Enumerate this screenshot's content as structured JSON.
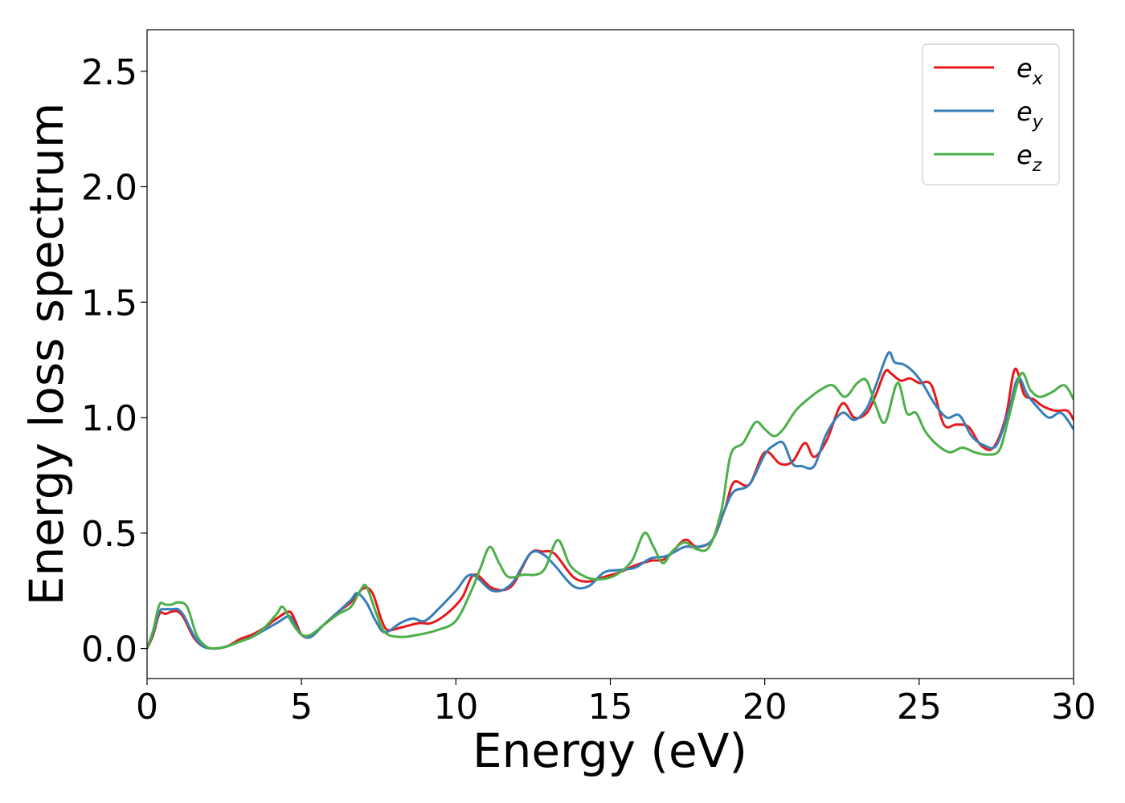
{
  "chart_data": {
    "type": "line",
    "title": "",
    "xlabel": "Energy (eV)",
    "ylabel": "Energy loss spectrum",
    "xlim": [
      0,
      30
    ],
    "ylim": [
      -0.13,
      2.68
    ],
    "xticks": [
      0,
      5,
      10,
      15,
      20,
      25,
      30
    ],
    "xtick_labels": [
      "0",
      "5",
      "10",
      "15",
      "20",
      "25",
      "30"
    ],
    "yticks": [
      0.0,
      0.5,
      1.0,
      1.5,
      2.0,
      2.5
    ],
    "ytick_labels": [
      "0.0",
      "0.5",
      "1.0",
      "1.5",
      "2.0",
      "2.5"
    ],
    "grid": false,
    "legend_position": "top-right",
    "series": [
      {
        "name": "e_x",
        "legend_base": "e",
        "legend_sub": "x",
        "color": "#e41a1c",
        "x": [
          0,
          0.2,
          0.4,
          0.6,
          0.8,
          1.0,
          1.2,
          1.5,
          1.8,
          2.2,
          2.6,
          3.0,
          3.4,
          3.8,
          4.2,
          4.6,
          4.8,
          5.0,
          5.3,
          5.7,
          6.2,
          6.6,
          7.0,
          7.3,
          7.6,
          7.8,
          8.2,
          8.8,
          9.2,
          9.7,
          10.2,
          10.6,
          11.2,
          11.8,
          12.4,
          12.8,
          13.2,
          13.8,
          14.3,
          14.8,
          15.3,
          15.8,
          16.3,
          16.8,
          17.4,
          17.8,
          18.3,
          18.7,
          19.0,
          19.5,
          20.0,
          20.5,
          20.9,
          21.3,
          21.6,
          22.0,
          22.5,
          22.9,
          23.3,
          23.6,
          23.9,
          24.1,
          24.4,
          24.7,
          25.0,
          25.4,
          25.8,
          26.2,
          26.6,
          27.0,
          27.4,
          27.8,
          28.1,
          28.4,
          28.7,
          29.0,
          29.4,
          29.8,
          30.0
        ],
        "y": [
          0.0,
          0.06,
          0.15,
          0.15,
          0.16,
          0.16,
          0.13,
          0.05,
          0.01,
          0.0,
          0.01,
          0.04,
          0.06,
          0.09,
          0.13,
          0.16,
          0.12,
          0.06,
          0.05,
          0.1,
          0.16,
          0.2,
          0.26,
          0.24,
          0.12,
          0.08,
          0.09,
          0.11,
          0.11,
          0.15,
          0.22,
          0.32,
          0.26,
          0.27,
          0.41,
          0.42,
          0.41,
          0.31,
          0.29,
          0.31,
          0.33,
          0.36,
          0.38,
          0.39,
          0.47,
          0.44,
          0.47,
          0.6,
          0.72,
          0.71,
          0.85,
          0.8,
          0.81,
          0.89,
          0.83,
          0.9,
          1.06,
          1.0,
          1.02,
          1.1,
          1.2,
          1.19,
          1.16,
          1.17,
          1.15,
          1.14,
          0.97,
          0.97,
          0.96,
          0.88,
          0.87,
          1.0,
          1.21,
          1.1,
          1.08,
          1.05,
          1.03,
          1.03,
          0.99
        ]
      },
      {
        "name": "e_y",
        "legend_base": "e",
        "legend_sub": "y",
        "color": "#377eb8",
        "x": [
          0,
          0.2,
          0.4,
          0.6,
          0.8,
          1.0,
          1.2,
          1.5,
          1.8,
          2.2,
          2.6,
          3.0,
          3.4,
          3.8,
          4.2,
          4.6,
          4.8,
          5.0,
          5.3,
          5.7,
          6.2,
          6.6,
          6.8,
          7.1,
          7.4,
          7.7,
          8.2,
          8.6,
          9.0,
          9.5,
          10.0,
          10.5,
          11.2,
          11.8,
          12.4,
          12.8,
          13.2,
          13.8,
          14.3,
          14.8,
          15.3,
          15.8,
          16.3,
          16.8,
          17.4,
          17.8,
          18.3,
          18.7,
          19.0,
          19.5,
          20.0,
          20.3,
          20.6,
          20.9,
          21.2,
          21.6,
          22.0,
          22.5,
          22.9,
          23.3,
          23.6,
          24.0,
          24.2,
          24.5,
          24.8,
          25.1,
          25.5,
          25.9,
          26.3,
          26.7,
          27.1,
          27.5,
          27.9,
          28.2,
          28.5,
          28.8,
          29.2,
          29.6,
          30.0
        ],
        "y": [
          0.0,
          0.07,
          0.16,
          0.17,
          0.17,
          0.17,
          0.14,
          0.06,
          0.01,
          0.0,
          0.01,
          0.03,
          0.05,
          0.08,
          0.11,
          0.14,
          0.1,
          0.06,
          0.05,
          0.1,
          0.16,
          0.21,
          0.24,
          0.2,
          0.12,
          0.07,
          0.11,
          0.13,
          0.12,
          0.18,
          0.25,
          0.32,
          0.25,
          0.28,
          0.41,
          0.41,
          0.36,
          0.27,
          0.27,
          0.33,
          0.34,
          0.35,
          0.39,
          0.4,
          0.44,
          0.44,
          0.47,
          0.6,
          0.68,
          0.71,
          0.84,
          0.88,
          0.89,
          0.8,
          0.79,
          0.79,
          0.93,
          1.02,
          0.99,
          1.04,
          1.14,
          1.28,
          1.24,
          1.23,
          1.2,
          1.15,
          1.06,
          1.0,
          1.01,
          0.92,
          0.88,
          0.88,
          1.03,
          1.17,
          1.1,
          1.05,
          1.0,
          1.02,
          0.95
        ]
      },
      {
        "name": "e_z",
        "legend_base": "e",
        "legend_sub": "z",
        "color": "#4daf4a",
        "x": [
          0,
          0.2,
          0.4,
          0.6,
          0.8,
          1.0,
          1.3,
          1.6,
          1.9,
          2.2,
          2.6,
          3.0,
          3.4,
          3.8,
          4.2,
          4.4,
          4.7,
          5.0,
          5.3,
          5.7,
          6.2,
          6.6,
          6.9,
          7.1,
          7.4,
          7.7,
          8.2,
          8.8,
          9.4,
          10.0,
          10.5,
          10.8,
          11.1,
          11.4,
          11.7,
          12.2,
          12.6,
          12.9,
          13.3,
          13.7,
          14.2,
          14.7,
          15.2,
          15.7,
          16.1,
          16.4,
          16.7,
          17.0,
          17.4,
          17.8,
          18.2,
          18.6,
          18.9,
          19.3,
          19.7,
          20.0,
          20.3,
          20.6,
          21.0,
          21.4,
          21.8,
          22.2,
          22.6,
          23.0,
          23.3,
          23.6,
          23.9,
          24.3,
          24.6,
          24.9,
          25.2,
          25.6,
          26.0,
          26.4,
          26.8,
          27.2,
          27.6,
          27.9,
          28.3,
          28.6,
          28.9,
          29.3,
          29.7,
          30.0
        ],
        "y": [
          0.0,
          0.08,
          0.19,
          0.19,
          0.19,
          0.2,
          0.18,
          0.06,
          0.01,
          0.0,
          0.01,
          0.03,
          0.05,
          0.09,
          0.15,
          0.18,
          0.11,
          0.06,
          0.06,
          0.1,
          0.15,
          0.18,
          0.25,
          0.27,
          0.16,
          0.07,
          0.05,
          0.06,
          0.08,
          0.12,
          0.25,
          0.35,
          0.44,
          0.37,
          0.31,
          0.32,
          0.32,
          0.35,
          0.47,
          0.36,
          0.31,
          0.3,
          0.32,
          0.38,
          0.5,
          0.44,
          0.37,
          0.42,
          0.46,
          0.43,
          0.44,
          0.6,
          0.84,
          0.89,
          0.98,
          0.95,
          0.92,
          0.95,
          1.03,
          1.08,
          1.12,
          1.14,
          1.09,
          1.15,
          1.16,
          1.05,
          0.98,
          1.15,
          1.02,
          1.02,
          0.94,
          0.88,
          0.85,
          0.87,
          0.85,
          0.84,
          0.86,
          1.0,
          1.19,
          1.12,
          1.09,
          1.11,
          1.14,
          1.08
        ]
      }
    ]
  }
}
